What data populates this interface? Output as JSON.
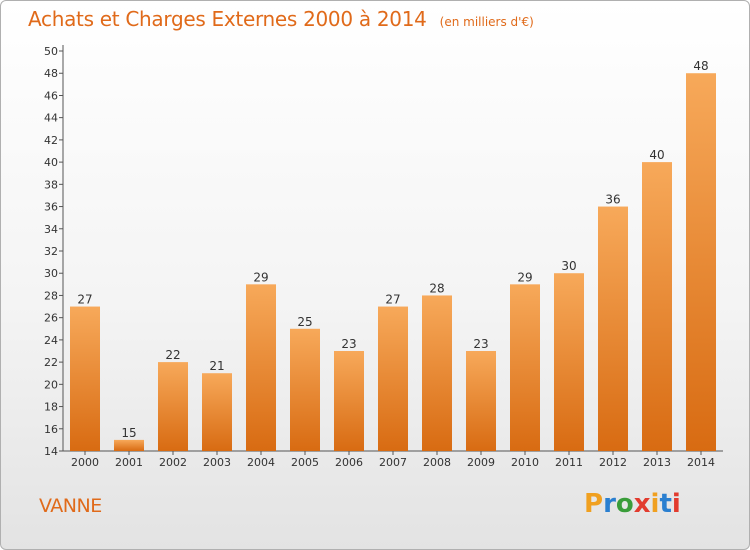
{
  "title": "Achats et Charges Externes 2000 à 2014",
  "subtitle": "(en milliers d'€)",
  "commune": "VANNE",
  "logo": {
    "letters": [
      "P",
      "r",
      "o",
      "x",
      "i",
      "t",
      "i"
    ],
    "colors": [
      "#f0a020",
      "#2a7fd0",
      "#3a9d3a",
      "#e23b2e",
      "#f0a020",
      "#2a7fd0",
      "#e23b2e"
    ]
  },
  "colors": {
    "bar_light": "#f7a95a",
    "bar_dark": "#d86b12",
    "accent": "#e06a1a"
  },
  "chart_data": {
    "type": "bar",
    "title": "Achats et Charges Externes 2000 à 2014",
    "subtitle": "(en milliers d'€)",
    "xlabel": "",
    "ylabel": "",
    "categories": [
      "2000",
      "2001",
      "2002",
      "2003",
      "2004",
      "2005",
      "2006",
      "2007",
      "2008",
      "2009",
      "2010",
      "2011",
      "2012",
      "2013",
      "2014"
    ],
    "values": [
      27,
      15,
      22,
      21,
      29,
      25,
      23,
      27,
      28,
      23,
      29,
      30,
      36,
      40,
      48
    ],
    "ylim": [
      14,
      50
    ],
    "yticks": [
      14,
      16,
      18,
      20,
      22,
      24,
      26,
      28,
      30,
      32,
      34,
      36,
      38,
      40,
      42,
      44,
      46,
      48,
      50
    ],
    "grid": false,
    "legend": "none"
  }
}
